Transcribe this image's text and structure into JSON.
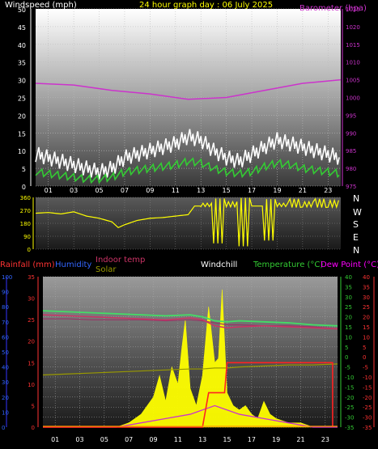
{
  "header": {
    "title": "24 hour graph day : 06 July 2025",
    "wind_label": "Windspeed (mph)",
    "baro_label": "Barometer (hpa)"
  },
  "panel3_labels": {
    "rainfall": "Rainfall (mm)",
    "humidity": "Humidity",
    "indoor_temp": "Indoor temp",
    "solar": "Solar",
    "windchill": "Windchill",
    "temperature": "Temperature (°C)",
    "dewpoint": "Dew Point (°C)"
  },
  "compass": [
    "N",
    "W",
    "S",
    "E",
    "N"
  ],
  "colors": {
    "wind_gust": "#ffffff",
    "wind_avg": "#33cc33",
    "barometer": "#cc33cc",
    "direction": "#ffff00",
    "rain": "#ff3333",
    "humidity": "#3333ff",
    "indoor": "#cc3366",
    "solar": "#999900",
    "temperature": "#33cc33",
    "dewpoint": "#ff00ff",
    "solar_fill": "#ffff00"
  },
  "chart_data": [
    {
      "type": "line",
      "name": "wind_and_pressure",
      "x_ticks": [
        "01",
        "03",
        "05",
        "07",
        "09",
        "11",
        "13",
        "15",
        "17",
        "19",
        "21",
        "23"
      ],
      "y_left": {
        "label": "Windspeed (mph)",
        "ticks": [
          0,
          5,
          10,
          15,
          20,
          25,
          30,
          35,
          40,
          45,
          50
        ],
        "ylim": [
          0,
          50
        ]
      },
      "y_right": {
        "label": "Barometer (hpa)",
        "ticks": [
          975,
          980,
          985,
          990,
          995,
          1000,
          1005,
          1010,
          1015,
          1020,
          1025
        ],
        "ylim": [
          975,
          1025
        ]
      },
      "series": [
        {
          "hours": [
            0,
            1,
            2,
            3,
            4,
            5,
            6,
            7,
            8,
            9,
            10,
            11,
            12,
            13,
            14,
            15,
            16,
            17,
            18,
            19,
            20,
            21,
            22,
            23,
            24
          ],
          "gust": [
            9,
            8,
            7,
            6,
            5,
            4,
            5,
            8,
            9,
            10,
            11,
            12,
            14,
            13,
            10,
            8,
            7,
            9,
            11,
            13,
            12,
            11,
            10,
            9,
            8
          ],
          "average": [
            4,
            3.5,
            3,
            2.5,
            2,
            2,
            2.5,
            4,
            4.5,
            5,
            5.5,
            6,
            7,
            6.5,
            5,
            4,
            3.5,
            4,
            5.5,
            6.5,
            6,
            5,
            4.5,
            4,
            3.5
          ]
        },
        {
          "name": "Barometer",
          "hours": [
            0,
            3,
            6,
            9,
            12,
            15,
            18,
            21,
            24
          ],
          "values": [
            1004,
            1003.5,
            1002,
            1001,
            999.5,
            1000,
            1002,
            1004,
            1005
          ]
        }
      ]
    },
    {
      "type": "line",
      "name": "wind_direction",
      "y_ticks": [
        0,
        90,
        180,
        270,
        360
      ],
      "ylim": [
        0,
        360
      ],
      "hours": [
        0,
        1,
        2,
        3,
        4,
        5,
        6,
        6.5,
        7,
        8,
        9,
        10,
        11,
        12,
        12.5,
        13,
        14,
        15,
        16,
        17,
        18,
        19,
        20,
        21,
        22,
        23,
        24
      ],
      "values": [
        250,
        255,
        245,
        260,
        230,
        215,
        190,
        150,
        170,
        200,
        215,
        220,
        230,
        240,
        300,
        320,
        40,
        330,
        20,
        300,
        60,
        320,
        350,
        330,
        350,
        340,
        355
      ]
    },
    {
      "type": "line",
      "name": "temperatures_rain_solar",
      "y_rain": {
        "ticks": [
          0,
          5,
          10,
          15,
          20,
          25,
          30,
          35
        ],
        "ylim": [
          0,
          35
        ]
      },
      "y_humidity": {
        "ticks": [
          0,
          10,
          20,
          30,
          40,
          50,
          60,
          70,
          80,
          90,
          100
        ],
        "ylim": [
          0,
          100
        ]
      },
      "y_temp": {
        "ticks": [
          40,
          35,
          30,
          25,
          20,
          15,
          10,
          5,
          0,
          -5,
          -10,
          -15,
          -20,
          -25,
          -30,
          -35
        ],
        "ylim": [
          -35,
          40
        ]
      },
      "y_dew": {
        "ticks": [
          40,
          35,
          30,
          25,
          20,
          15,
          10,
          5,
          0,
          -5,
          -10,
          -15,
          -20,
          -25,
          -30,
          -35
        ],
        "ylim": [
          -35,
          40
        ]
      },
      "hours": [
        0,
        2,
        4,
        6,
        8,
        10,
        12,
        13,
        14,
        15,
        16,
        18,
        20,
        22,
        24
      ],
      "temperature": [
        23,
        22.5,
        22,
        21.5,
        21,
        20.5,
        21,
        20,
        18,
        17.5,
        18,
        17.5,
        17,
        16,
        15.5
      ],
      "indoor": [
        21,
        20.5,
        20,
        19.5,
        19,
        18.5,
        19.5,
        18.5,
        15.5,
        14.5,
        15,
        15.5,
        15,
        14.5,
        14
      ],
      "dewpoint": [
        19,
        19,
        18.5,
        18.5,
        18.5,
        18,
        18.5,
        18,
        17,
        16,
        16,
        15.5,
        15.5,
        15,
        14
      ],
      "solar_line": [
        -9,
        -8.5,
        -8,
        -7.5,
        -7,
        -6.5,
        -6,
        -6,
        -5.5,
        -5.5,
        -5,
        -4.5,
        -4,
        -4,
        -3.5
      ],
      "humidity": [
        0,
        0,
        0,
        0,
        1,
        2,
        3,
        4,
        5,
        4,
        3,
        2,
        1,
        0,
        0
      ],
      "rain_hours": [
        0,
        13,
        13.5,
        14.8,
        15,
        16,
        23.6,
        23.6
      ],
      "rain_values": [
        0,
        0,
        8,
        8,
        15,
        15,
        15,
        0
      ],
      "solar_hours": [
        0,
        6,
        7,
        8,
        9,
        9.5,
        10,
        10.5,
        11,
        11.3,
        11.6,
        12,
        12.5,
        13,
        13.5,
        14,
        14.3,
        14.6,
        15,
        15.5,
        16,
        16.5,
        17,
        17.5,
        18,
        18.5,
        19,
        20,
        21,
        22,
        23,
        24
      ],
      "solar_values": [
        0,
        0,
        1,
        3,
        7,
        12,
        6,
        14,
        10,
        18,
        25,
        9,
        5,
        12,
        28,
        15,
        16,
        32,
        8,
        5,
        4,
        5,
        3,
        2,
        6,
        3,
        2,
        1,
        1,
        0,
        0,
        0
      ]
    }
  ]
}
